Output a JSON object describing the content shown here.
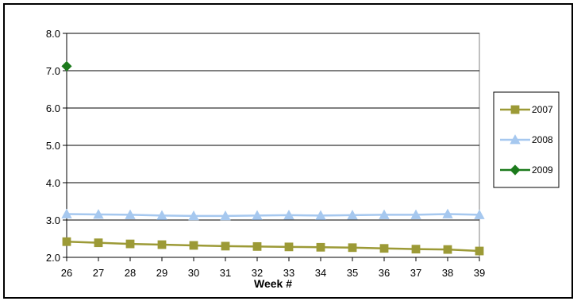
{
  "chart_data": {
    "type": "line",
    "title": "",
    "xlabel": "Week #",
    "ylabel": "",
    "x": [
      26,
      27,
      28,
      29,
      30,
      31,
      32,
      33,
      34,
      35,
      36,
      37,
      38,
      39
    ],
    "ylim": [
      2.0,
      8.0
    ],
    "yticks": [
      "2.0",
      "3.0",
      "4.0",
      "5.0",
      "6.0",
      "7.0",
      "8.0"
    ],
    "grid": "horizontal",
    "legend_position": "right",
    "series": [
      {
        "name": "2007",
        "marker": "square",
        "color": "#9c9a36",
        "values": [
          2.42,
          2.39,
          2.36,
          2.34,
          2.32,
          2.3,
          2.29,
          2.28,
          2.27,
          2.26,
          2.24,
          2.22,
          2.21,
          2.17
        ]
      },
      {
        "name": "2008",
        "marker": "triangle",
        "color": "#a6c8ef",
        "values": [
          3.16,
          3.15,
          3.14,
          3.12,
          3.11,
          3.11,
          3.12,
          3.13,
          3.12,
          3.13,
          3.14,
          3.14,
          3.16,
          3.14
        ]
      },
      {
        "name": "2009",
        "marker": "diamond",
        "color": "#1c7a1c",
        "values": [
          7.12,
          null,
          null,
          null,
          null,
          null,
          null,
          null,
          null,
          null,
          null,
          null,
          null,
          null
        ]
      }
    ]
  }
}
